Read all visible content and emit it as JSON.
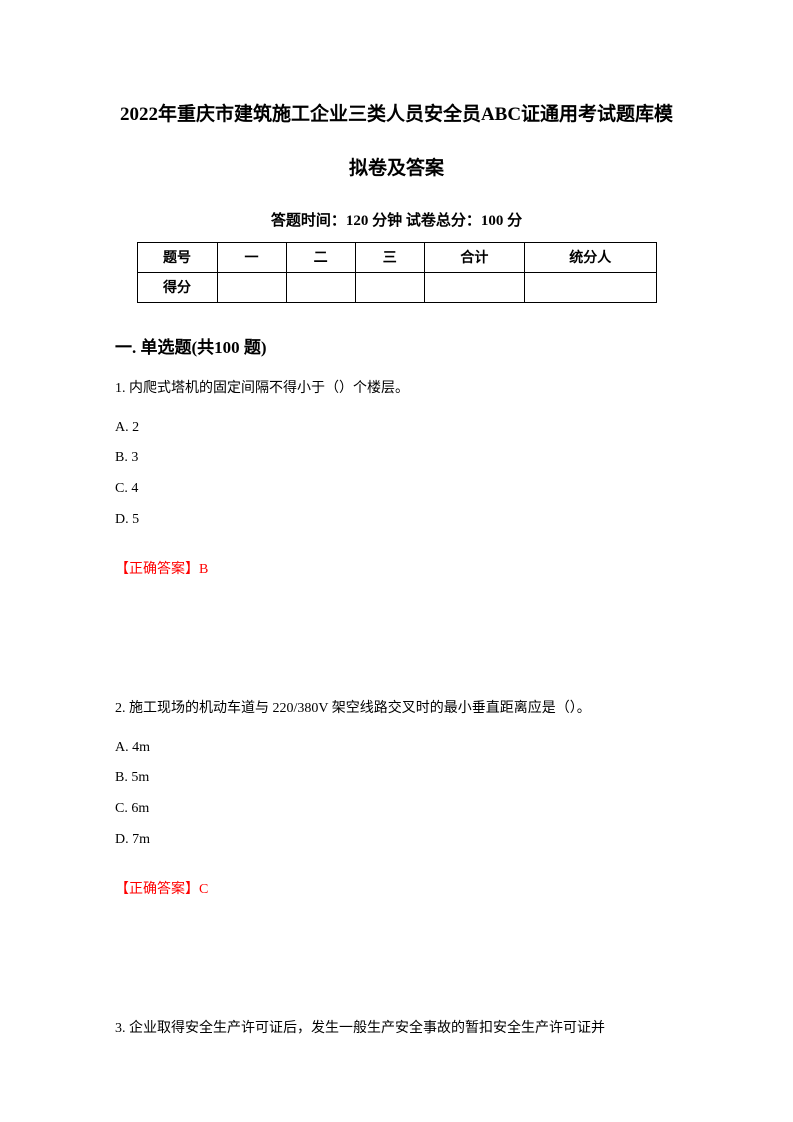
{
  "title_line1": "2022年重庆市建筑施工企业三类人员安全员ABC证通用考试题库模",
  "title_line2": "拟卷及答案",
  "exam_info": "答题时间：120 分钟    试卷总分：100 分",
  "table": {
    "row1": [
      "题号",
      "一",
      "二",
      "三",
      "合计",
      "统分人"
    ],
    "row2_label": "得分"
  },
  "section_title": "一. 单选题(共100 题)",
  "q1": {
    "text": "1. 内爬式塔机的固定间隔不得小于（）个楼层。",
    "options": [
      "A. 2",
      "B. 3",
      "C. 4",
      "D. 5"
    ],
    "answer": "【正确答案】B"
  },
  "q2": {
    "text": "2. 施工现场的机动车道与 220/380V 架空线路交叉时的最小垂直距离应是（）。",
    "options": [
      "A. 4m",
      "B. 5m",
      "C. 6m",
      "D. 7m"
    ],
    "answer": "【正确答案】C"
  },
  "q3": {
    "text": "3. 企业取得安全生产许可证后，发生一般生产安全事故的暂扣安全生产许可证并"
  },
  "colors": {
    "text": "#000000",
    "answer": "#ff0000",
    "background": "#ffffff",
    "border": "#000000"
  },
  "fonts": {
    "title_size": 19,
    "body_size": 14,
    "section_size": 17,
    "info_size": 15
  }
}
